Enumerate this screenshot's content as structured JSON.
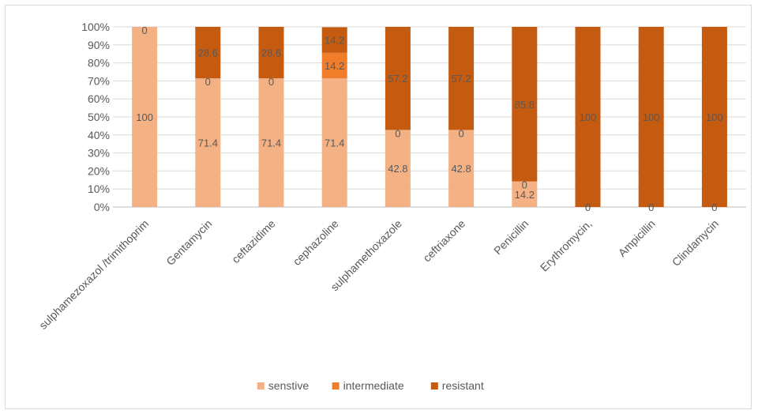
{
  "chart_data": {
    "type": "bar",
    "stacked": "percent",
    "categories": [
      "sulphamezoxazol /trimithoprim",
      "Gentamycin",
      "ceftazidime",
      "cephazoline",
      "sulphamethoxazole",
      "ceftriaxone",
      "Penicillin",
      "Erythromycin,",
      "Ampicillin",
      "Clindamycin"
    ],
    "series": [
      {
        "name": "senstive",
        "color": "#f4b183",
        "values": [
          100,
          71.4,
          71.4,
          71.4,
          42.8,
          42.8,
          14.2,
          0,
          0,
          0
        ]
      },
      {
        "name": "intermediate",
        "color": "#f07d2a",
        "values": [
          0,
          0,
          0,
          14.2,
          0,
          0,
          0,
          0,
          0,
          0
        ]
      },
      {
        "name": "resistant",
        "color": "#c55a11",
        "values": [
          0,
          28.6,
          28.6,
          14.2,
          57.2,
          57.2,
          85.8,
          100,
          100,
          100
        ]
      }
    ],
    "data_labels": [
      [
        "100",
        "0",
        ""
      ],
      [
        "71.4",
        "0",
        "28.6"
      ],
      [
        "71.4",
        "0",
        "28.6"
      ],
      [
        "71.4",
        "14.2",
        "14.2"
      ],
      [
        "42.8",
        "0",
        "57.2"
      ],
      [
        "42.8",
        "0",
        "57.2"
      ],
      [
        "14.2",
        "0",
        "85.8"
      ],
      [
        "0",
        "",
        "100"
      ],
      [
        "0",
        "",
        "100"
      ],
      [
        "0",
        "",
        "100"
      ]
    ],
    "y_ticks": [
      "0%",
      "10%",
      "20%",
      "30%",
      "40%",
      "50%",
      "60%",
      "70%",
      "80%",
      "90%",
      "100%"
    ],
    "ylim": [
      0,
      100
    ],
    "grid": true,
    "legend_position": "bottom"
  }
}
